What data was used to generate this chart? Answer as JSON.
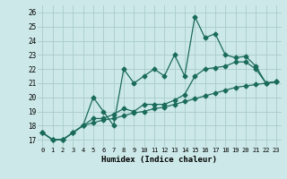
{
  "xlabel": "Humidex (Indice chaleur)",
  "bg_color": "#cce8e8",
  "grid_color": "#aacccc",
  "line_color": "#1a6b5a",
  "xlim": [
    -0.5,
    23.5
  ],
  "ylim": [
    16.5,
    26.5
  ],
  "xticks": [
    0,
    1,
    2,
    3,
    4,
    5,
    6,
    7,
    8,
    9,
    10,
    11,
    12,
    13,
    14,
    15,
    16,
    17,
    18,
    19,
    20,
    21,
    22,
    23
  ],
  "yticks": [
    17,
    18,
    19,
    20,
    21,
    22,
    23,
    24,
    25,
    26
  ],
  "series1": [
    17.5,
    17.0,
    17.0,
    17.5,
    18.0,
    20.0,
    19.0,
    18.0,
    22.0,
    21.0,
    21.5,
    22.0,
    21.5,
    23.0,
    21.5,
    25.7,
    24.2,
    24.5,
    23.0,
    22.8,
    22.9,
    22.2,
    21.0,
    21.1
  ],
  "series2": [
    17.5,
    17.0,
    17.0,
    17.5,
    18.0,
    18.5,
    18.5,
    18.8,
    19.2,
    19.0,
    19.5,
    19.5,
    19.5,
    19.8,
    20.2,
    21.5,
    22.0,
    22.1,
    22.2,
    22.5,
    22.5,
    22.0,
    21.0,
    21.1
  ],
  "series3": [
    17.5,
    17.0,
    17.0,
    17.5,
    18.0,
    18.2,
    18.4,
    18.5,
    18.7,
    18.9,
    19.0,
    19.2,
    19.3,
    19.5,
    19.7,
    19.9,
    20.1,
    20.3,
    20.5,
    20.7,
    20.8,
    20.9,
    21.0,
    21.1
  ]
}
